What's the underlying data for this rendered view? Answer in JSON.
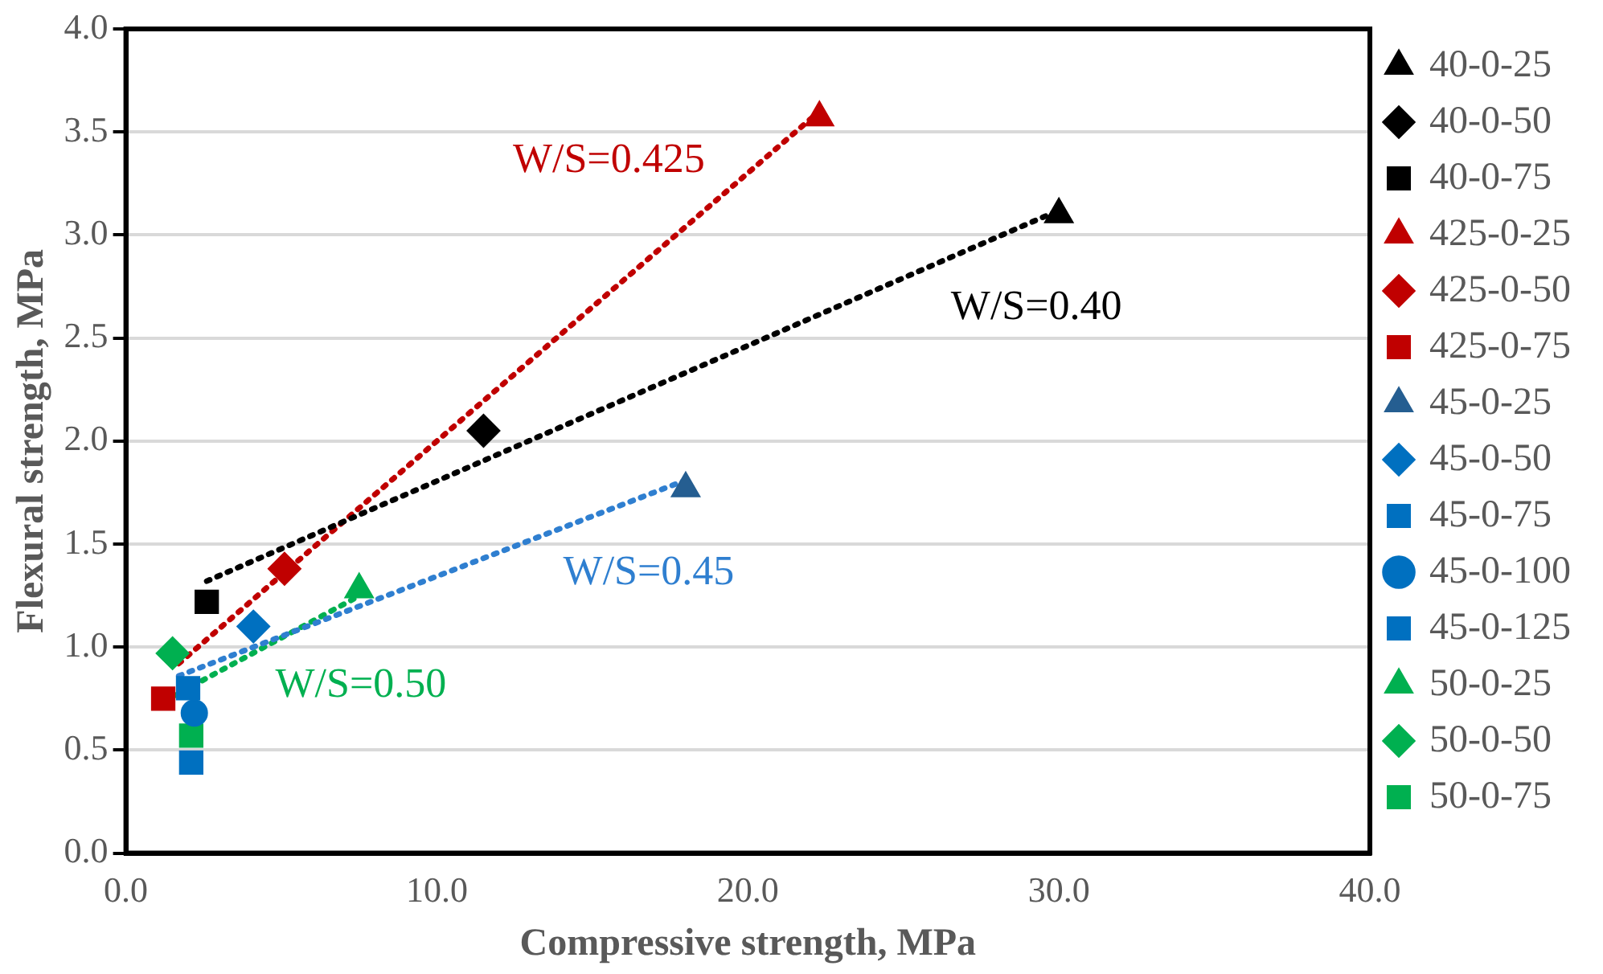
{
  "chart_data": {
    "type": "scatter",
    "xlabel": "Compressive strength, MPa",
    "ylabel": "Flexural strength, MPa",
    "xlim": [
      0,
      40
    ],
    "xticks": [
      {
        "value": 0,
        "label": "0.0"
      },
      {
        "value": 10,
        "label": "10.0"
      },
      {
        "value": 20,
        "label": "20.0"
      },
      {
        "value": 30,
        "label": "30.0"
      },
      {
        "value": 40,
        "label": "40.0"
      }
    ],
    "ylim": [
      0,
      4
    ],
    "yticks": [
      {
        "value": 0,
        "label": "0.0"
      },
      {
        "value": 0.5,
        "label": "0.5"
      },
      {
        "value": 1,
        "label": "1.0"
      },
      {
        "value": 1.5,
        "label": "1.5"
      },
      {
        "value": 2,
        "label": "2.0"
      },
      {
        "value": 2.5,
        "label": "2.5"
      },
      {
        "value": 3,
        "label": "3.0"
      },
      {
        "value": 3.5,
        "label": "3.5"
      },
      {
        "value": 4,
        "label": "4.0"
      }
    ],
    "grid": "y",
    "legend": "right",
    "series": [
      {
        "name": "40-0-25",
        "color": "#000000",
        "marker": "triangle",
        "x": [
          30.0
        ],
        "values": [
          3.1
        ]
      },
      {
        "name": "40-0-50",
        "color": "#000000",
        "marker": "diamond",
        "x": [
          11.5
        ],
        "values": [
          2.05
        ]
      },
      {
        "name": "40-0-75",
        "color": "#000000",
        "marker": "square",
        "x": [
          2.6
        ],
        "values": [
          1.22
        ]
      },
      {
        "name": "425-0-25",
        "color": "#c00000",
        "marker": "triangle",
        "x": [
          22.3
        ],
        "values": [
          3.57
        ]
      },
      {
        "name": "425-0-50",
        "color": "#c00000",
        "marker": "diamond",
        "x": [
          5.1
        ],
        "values": [
          1.38
        ]
      },
      {
        "name": "425-0-75",
        "color": "#c00000",
        "marker": "square",
        "x": [
          1.2
        ],
        "values": [
          0.75
        ]
      },
      {
        "name": "45-0-25",
        "color": "#255e91",
        "marker": "triangle",
        "x": [
          18.0
        ],
        "values": [
          1.77
        ]
      },
      {
        "name": "45-0-50",
        "color": "#0070c0",
        "marker": "diamond",
        "x": [
          4.1
        ],
        "values": [
          1.1
        ]
      },
      {
        "name": "45-0-75",
        "color": "#0070c0",
        "marker": "square",
        "x": [
          2.0
        ],
        "values": [
          0.8
        ]
      },
      {
        "name": "45-0-100",
        "color": "#0070c0",
        "marker": "circle",
        "x": [
          2.2
        ],
        "values": [
          0.68
        ]
      },
      {
        "name": "45-0-125",
        "color": "#0070c0",
        "marker": "square",
        "x": [
          2.1
        ],
        "values": [
          0.44
        ]
      },
      {
        "name": "50-0-25",
        "color": "#00b050",
        "marker": "triangle",
        "x": [
          7.5
        ],
        "values": [
          1.28
        ]
      },
      {
        "name": "50-0-50",
        "color": "#00b050",
        "marker": "diamond",
        "x": [
          1.5
        ],
        "values": [
          0.97
        ]
      },
      {
        "name": "50-0-75",
        "color": "#00b050",
        "marker": "square",
        "x": [
          2.1
        ],
        "values": [
          0.57
        ]
      },
      {
        "type": "line",
        "name": "W/S=0.40",
        "color": "#000000",
        "marker": "none",
        "line_style": "dotted",
        "x": [
          2.6,
          30.0
        ],
        "values": [
          1.32,
          3.12
        ]
      },
      {
        "type": "line",
        "name": "W/S=0.425",
        "color": "#c00000",
        "marker": "none",
        "line_style": "dotted",
        "x": [
          1.7,
          22.3
        ],
        "values": [
          0.92,
          3.6
        ]
      },
      {
        "type": "line",
        "name": "W/S=0.45",
        "color": "#2f7fd0",
        "marker": "none",
        "line_style": "dotted",
        "x": [
          1.7,
          18.0
        ],
        "values": [
          0.86,
          1.81
        ]
      },
      {
        "type": "line",
        "name": "W/S=0.50",
        "color": "#00b050",
        "marker": "none",
        "line_style": "dotted",
        "x": [
          1.5,
          7.4
        ],
        "values": [
          0.76,
          1.24
        ]
      }
    ]
  }
}
